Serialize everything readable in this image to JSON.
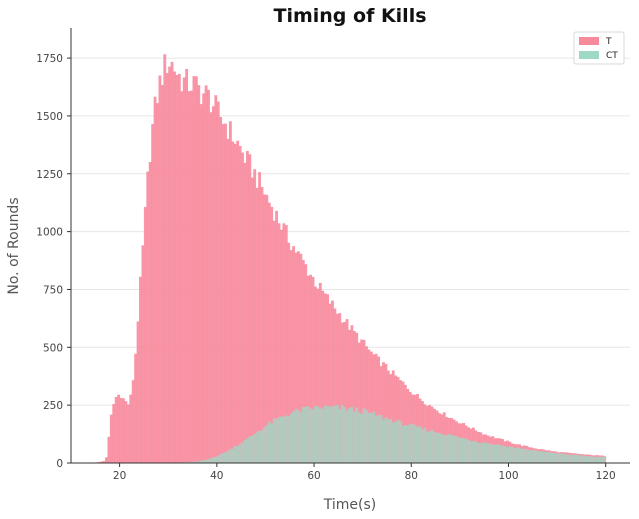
{
  "chart_data": {
    "type": "bar",
    "title": "Timing of Kills",
    "xlabel": "Time(s)",
    "ylabel": "No. of Rounds",
    "xlim": [
      10,
      125
    ],
    "ylim": [
      0,
      1880
    ],
    "xticks": [
      20,
      40,
      60,
      80,
      100,
      120
    ],
    "yticks": [
      0,
      250,
      500,
      750,
      1000,
      1250,
      1500,
      1750
    ],
    "grid": "horizontal",
    "legend_position": "top-right",
    "bin_width": 0.5,
    "series": [
      {
        "name": "T",
        "color": "#f7899c",
        "anchors": [
          [
            15,
            2
          ],
          [
            16,
            5
          ],
          [
            17,
            10
          ],
          [
            17.5,
            40
          ],
          [
            18,
            180
          ],
          [
            19,
            280
          ],
          [
            20,
            300
          ],
          [
            21,
            270
          ],
          [
            22,
            250
          ],
          [
            23,
            400
          ],
          [
            24,
            700
          ],
          [
            25,
            1000
          ],
          [
            26,
            1300
          ],
          [
            27,
            1500
          ],
          [
            28,
            1620
          ],
          [
            29,
            1700
          ],
          [
            30,
            1740
          ],
          [
            31,
            1720
          ],
          [
            32,
            1680
          ],
          [
            33,
            1650
          ],
          [
            34,
            1640
          ],
          [
            35,
            1640
          ],
          [
            36,
            1620
          ],
          [
            37,
            1600
          ],
          [
            38,
            1590
          ],
          [
            39,
            1560
          ],
          [
            40,
            1520
          ],
          [
            41,
            1490
          ],
          [
            42,
            1460
          ],
          [
            43,
            1420
          ],
          [
            44,
            1390
          ],
          [
            45,
            1350
          ],
          [
            46,
            1310
          ],
          [
            47,
            1280
          ],
          [
            48,
            1240
          ],
          [
            49,
            1200
          ],
          [
            50,
            1160
          ],
          [
            52,
            1080
          ],
          [
            55,
            960
          ],
          [
            58,
            860
          ],
          [
            60,
            790
          ],
          [
            62,
            730
          ],
          [
            65,
            650
          ],
          [
            68,
            570
          ],
          [
            70,
            520
          ],
          [
            72,
            470
          ],
          [
            75,
            410
          ],
          [
            78,
            350
          ],
          [
            80,
            310
          ],
          [
            83,
            260
          ],
          [
            86,
            220
          ],
          [
            89,
            185
          ],
          [
            92,
            155
          ],
          [
            95,
            125
          ],
          [
            98,
            105
          ],
          [
            101,
            85
          ],
          [
            104,
            70
          ],
          [
            107,
            58
          ],
          [
            110,
            48
          ],
          [
            113,
            42
          ],
          [
            116,
            36
          ],
          [
            119,
            32
          ],
          [
            120,
            30
          ]
        ],
        "noise": 0.04
      },
      {
        "name": "CT",
        "color": "#9fd9c6",
        "anchors": [
          [
            28,
            0
          ],
          [
            33,
            3
          ],
          [
            36,
            6
          ],
          [
            38,
            15
          ],
          [
            40,
            30
          ],
          [
            42,
            50
          ],
          [
            44,
            75
          ],
          [
            46,
            100
          ],
          [
            48,
            130
          ],
          [
            50,
            160
          ],
          [
            52,
            185
          ],
          [
            54,
            205
          ],
          [
            56,
            222
          ],
          [
            58,
            232
          ],
          [
            60,
            238
          ],
          [
            62,
            240
          ],
          [
            64,
            240
          ],
          [
            66,
            238
          ],
          [
            68,
            232
          ],
          [
            70,
            225
          ],
          [
            72,
            212
          ],
          [
            74,
            198
          ],
          [
            76,
            185
          ],
          [
            78,
            172
          ],
          [
            80,
            160
          ],
          [
            82,
            150
          ],
          [
            84,
            140
          ],
          [
            86,
            130
          ],
          [
            88,
            120
          ],
          [
            90,
            110
          ],
          [
            92,
            100
          ],
          [
            94,
            92
          ],
          [
            96,
            85
          ],
          [
            98,
            78
          ],
          [
            100,
            71
          ],
          [
            102,
            65
          ],
          [
            104,
            58
          ],
          [
            106,
            52
          ],
          [
            108,
            47
          ],
          [
            110,
            42
          ],
          [
            112,
            38
          ],
          [
            114,
            34
          ],
          [
            116,
            30
          ],
          [
            118,
            27
          ],
          [
            120,
            25
          ]
        ],
        "noise": 0.06
      }
    ]
  }
}
